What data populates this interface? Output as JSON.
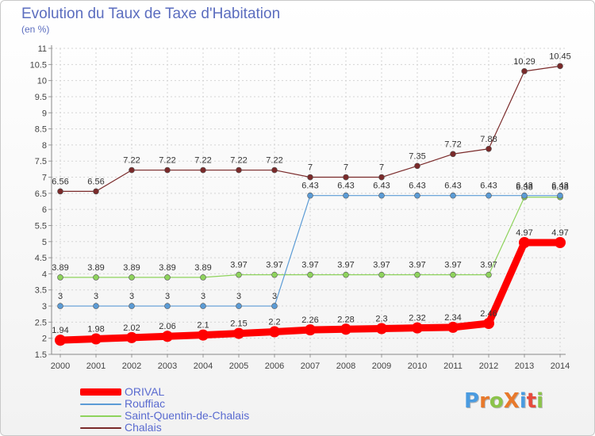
{
  "title": "Evolution du Taux de Taxe d'Habitation",
  "subtitle": "(en %)",
  "logo": {
    "text": "ProXiti",
    "colors": [
      "#4a9be0",
      "#e8792b",
      "#8bc34a",
      "#e8792b",
      "#4a9be0",
      "#e64b3c",
      "#8bc34a"
    ]
  },
  "chart_data": {
    "type": "line",
    "x": [
      "2000",
      "2001",
      "2002",
      "2003",
      "2004",
      "2005",
      "2006",
      "2007",
      "2008",
      "2009",
      "2010",
      "2011",
      "2012",
      "2013",
      "2014"
    ],
    "y_ticks": [
      "1.5",
      "2",
      "2.5",
      "3",
      "3.5",
      "4",
      "4.5",
      "5",
      "5.5",
      "6",
      "6.5",
      "7",
      "7.5",
      "8",
      "8.5",
      "9",
      "9.5",
      "10",
      "10.5",
      "11"
    ],
    "ylim": [
      1.5,
      11
    ],
    "grid": true,
    "series": [
      {
        "name": "ORIVAL",
        "color": "#ff0000",
        "values": [
          1.94,
          1.98,
          2.02,
          2.06,
          2.1,
          2.15,
          2.2,
          2.26,
          2.28,
          2.3,
          2.32,
          2.34,
          2.46,
          4.97,
          4.97
        ],
        "labels": [
          "1.94",
          "1.98",
          "2.02",
          "2.06",
          "2.1",
          "2.15",
          "2.2",
          "2.26",
          "2.28",
          "2.3",
          "2.32",
          "2.34",
          "2.46",
          "4.97",
          "4.97"
        ]
      },
      {
        "name": "Rouffiac",
        "color": "#5b9bd5",
        "values": [
          3,
          3,
          3,
          3,
          3,
          3,
          3,
          6.43,
          6.43,
          6.43,
          6.43,
          6.43,
          6.43,
          6.43,
          6.43
        ],
        "labels": [
          "3",
          "3",
          "3",
          "3",
          "3",
          "3",
          "3",
          "6.43",
          "6.43",
          "6.43",
          "6.43",
          "6.43",
          "6.43",
          "6.43",
          "6.43"
        ]
      },
      {
        "name": "Saint-Quentin-de-Chalais",
        "color": "#8ed35c",
        "values": [
          3.89,
          3.89,
          3.89,
          3.89,
          3.89,
          3.97,
          3.97,
          3.97,
          3.97,
          3.97,
          3.97,
          3.97,
          3.97,
          6.38,
          6.38
        ],
        "labels": [
          "3.89",
          "3.89",
          "3.89",
          "3.89",
          "3.89",
          "3.97",
          "3.97",
          "3.97",
          "3.97",
          "3.97",
          "3.97",
          "3.97",
          "3.97",
          "6.38",
          "6.38"
        ]
      },
      {
        "name": "Chalais",
        "color": "#7a2a2a",
        "values": [
          6.56,
          6.56,
          7.22,
          7.22,
          7.22,
          7.22,
          7.22,
          7,
          7,
          7,
          7.35,
          7.72,
          7.88,
          10.29,
          10.45
        ],
        "labels": [
          "6.56",
          "6.56",
          "7.22",
          "7.22",
          "7.22",
          "7.22",
          "7.22",
          "7",
          "7",
          "7",
          "7.35",
          "7.72",
          "7.88",
          "10.29",
          "10.45"
        ]
      }
    ]
  }
}
